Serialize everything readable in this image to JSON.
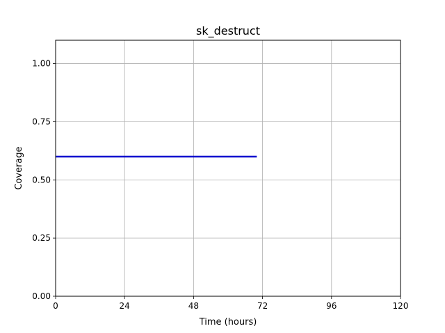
{
  "chart_data": {
    "type": "line",
    "title": "sk_destruct",
    "xlabel": "Time (hours)",
    "ylabel": "Coverage",
    "xlim": [
      0,
      120
    ],
    "ylim": [
      0,
      1.1
    ],
    "xticks": [
      0,
      24,
      48,
      72,
      96,
      120
    ],
    "xtick_labels": [
      "0",
      "24",
      "48",
      "72",
      "96",
      "120"
    ],
    "yticks": [
      0,
      0.25,
      0.5,
      0.75,
      1.0
    ],
    "ytick_labels": [
      "0.00",
      "0.25",
      "0.50",
      "0.75",
      "1.00"
    ],
    "grid": true,
    "series": [
      {
        "color": "#0000cc",
        "x": [
          0,
          70
        ],
        "y": [
          0.6,
          0.6
        ]
      }
    ]
  }
}
